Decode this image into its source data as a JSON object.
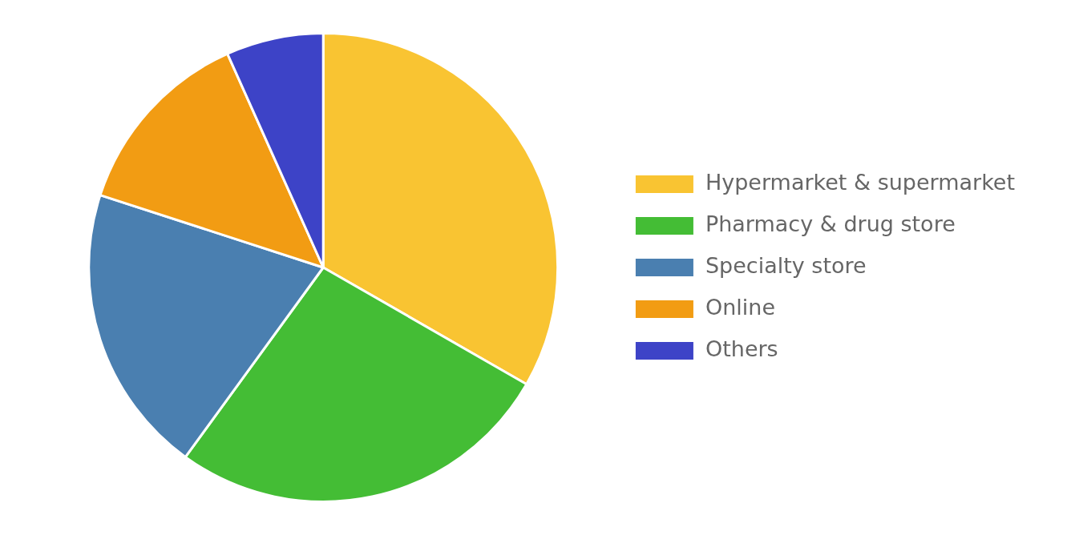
{
  "chart_data": {
    "type": "pie",
    "categories": [
      "Hypermarket & supermarket",
      "Pharmacy & drug store",
      "Specialty store",
      "Online",
      "Others"
    ],
    "values": [
      33.3,
      26.7,
      20,
      13.3,
      6.7
    ],
    "colors": [
      "#f9c432",
      "#44bd35",
      "#4a7fb0",
      "#f29c13",
      "#3d43c7"
    ],
    "legend": "right"
  }
}
